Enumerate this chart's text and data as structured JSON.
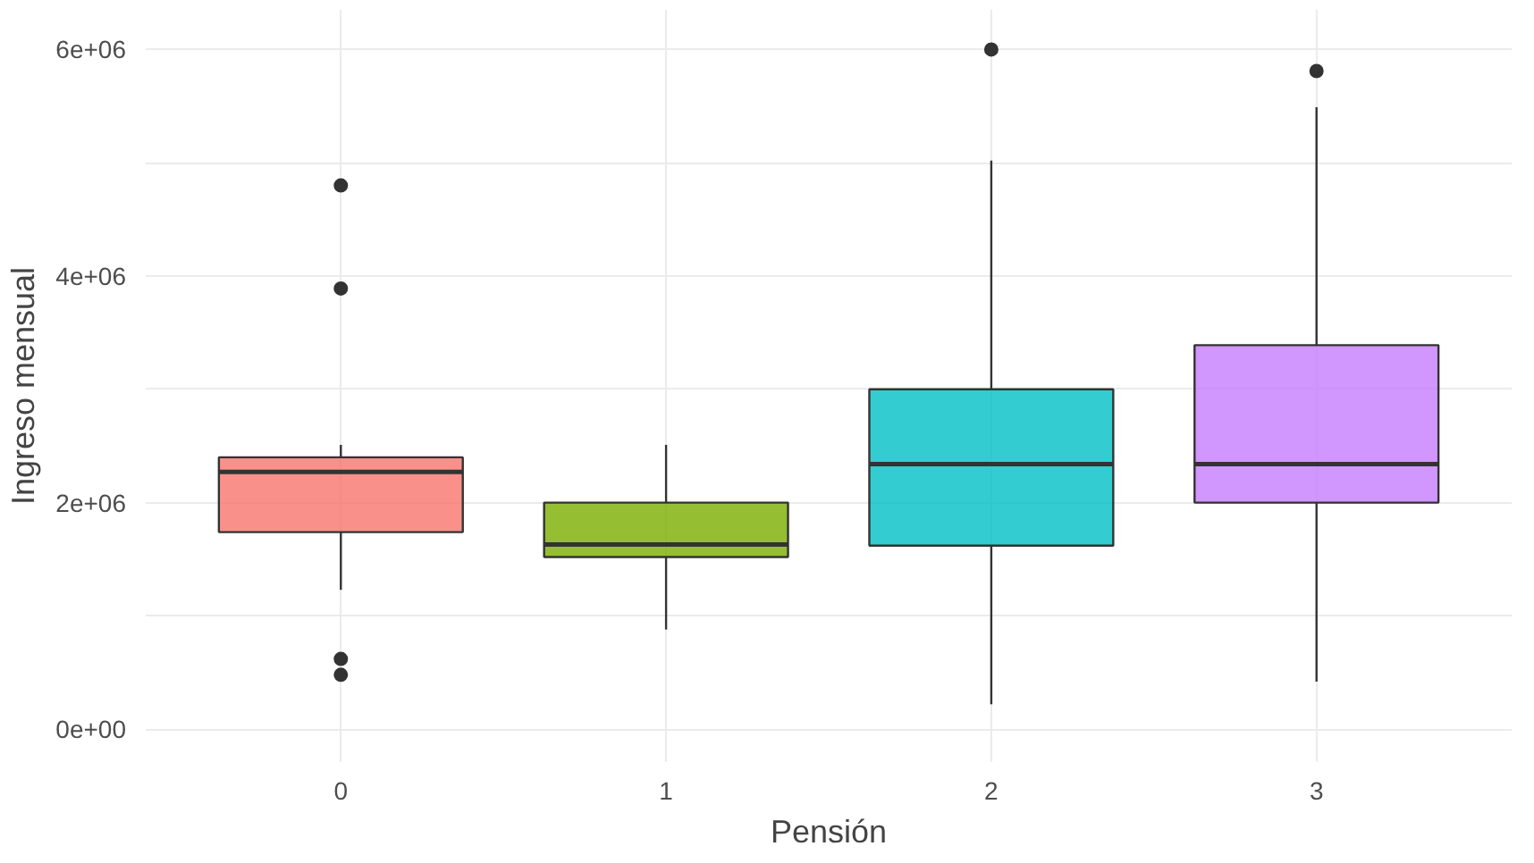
{
  "chart_data": {
    "type": "box",
    "xlabel": "Pensión",
    "ylabel": "Ingreso mensual",
    "categories": [
      "0",
      "1",
      "2",
      "3"
    ],
    "colors": [
      "#f8766d",
      "#7cae00",
      "#00bfc4",
      "#c77cff"
    ],
    "boxes": [
      {
        "low": 1230000,
        "q1": 1740000,
        "median": 2270000,
        "q3": 2400000,
        "high": 2510000,
        "outliers": [
          4800000,
          3890000,
          620000,
          480000
        ]
      },
      {
        "low": 880000,
        "q1": 1520000,
        "median": 1630000,
        "q3": 2000000,
        "high": 2510000
      },
      {
        "low": 220000,
        "q1": 1620000,
        "median": 2340000,
        "q3": 3000000,
        "high": 5020000,
        "outliers": [
          6000000
        ]
      },
      {
        "low": 420000,
        "q1": 2000000,
        "median": 2340000,
        "q3": 3390000,
        "high": 5490000,
        "outliers": [
          5810000
        ]
      }
    ],
    "ylim": [
      -290000,
      6350000
    ],
    "yticks": [
      {
        "value": 0,
        "label": "0e+00"
      },
      {
        "value": 1000000,
        "label": null
      },
      {
        "value": 2000000,
        "label": "2e+06"
      },
      {
        "value": 3000000,
        "label": null
      },
      {
        "value": 4000000,
        "label": "4e+06"
      },
      {
        "value": 5000000,
        "label": null
      },
      {
        "value": 6000000,
        "label": "6e+06"
      }
    ],
    "grid": true
  }
}
